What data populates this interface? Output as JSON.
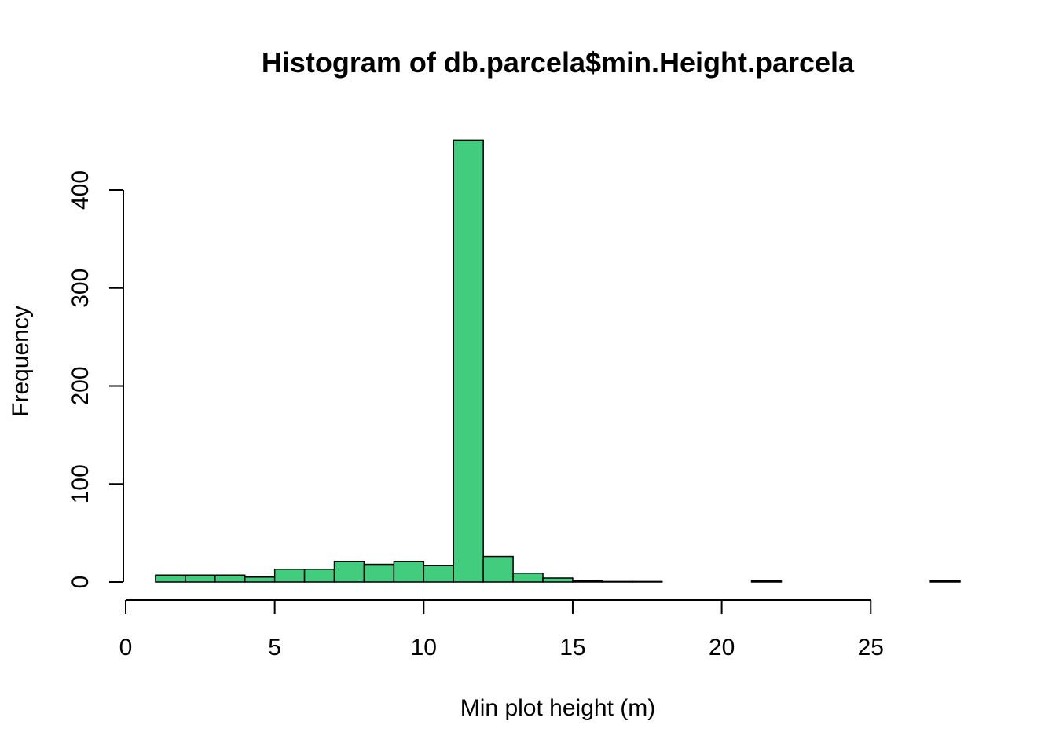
{
  "chart_data": {
    "type": "bar",
    "title": "Histogram of db.parcela$min.Height.parcela",
    "xlabel": "Min plot height (m)",
    "ylabel": "Frequency",
    "bar_color": "#42CD7E",
    "xlim": [
      0,
      28
    ],
    "ylim": [
      0,
      450
    ],
    "x_ticks": [
      0,
      5,
      10,
      15,
      20,
      25
    ],
    "y_ticks": [
      0,
      100,
      200,
      300,
      400
    ],
    "grid": false,
    "bins": [
      {
        "x0": 1,
        "x1": 2,
        "count": 7
      },
      {
        "x0": 2,
        "x1": 3,
        "count": 7
      },
      {
        "x0": 3,
        "x1": 4,
        "count": 7
      },
      {
        "x0": 4,
        "x1": 5,
        "count": 5
      },
      {
        "x0": 5,
        "x1": 6,
        "count": 13
      },
      {
        "x0": 6,
        "x1": 7,
        "count": 13
      },
      {
        "x0": 7,
        "x1": 8,
        "count": 21
      },
      {
        "x0": 8,
        "x1": 9,
        "count": 18
      },
      {
        "x0": 9,
        "x1": 10,
        "count": 21
      },
      {
        "x0": 10,
        "x1": 11,
        "count": 17
      },
      {
        "x0": 11,
        "x1": 12,
        "count": 451
      },
      {
        "x0": 12,
        "x1": 13,
        "count": 26
      },
      {
        "x0": 13,
        "x1": 14,
        "count": 9
      },
      {
        "x0": 14,
        "x1": 15,
        "count": 4
      },
      {
        "x0": 15,
        "x1": 16,
        "count": 1
      },
      {
        "x0": 16,
        "x1": 17,
        "count": 0.5
      },
      {
        "x0": 17,
        "x1": 18,
        "count": 0.5
      },
      {
        "x0": 18,
        "x1": 19,
        "count": 0
      },
      {
        "x0": 19,
        "x1": 20,
        "count": 0
      },
      {
        "x0": 20,
        "x1": 21,
        "count": 0
      },
      {
        "x0": 21,
        "x1": 22,
        "count": 1
      },
      {
        "x0": 22,
        "x1": 23,
        "count": 0
      },
      {
        "x0": 23,
        "x1": 24,
        "count": 0
      },
      {
        "x0": 24,
        "x1": 25,
        "count": 0
      },
      {
        "x0": 25,
        "x1": 26,
        "count": 0
      },
      {
        "x0": 26,
        "x1": 27,
        "count": 0
      },
      {
        "x0": 27,
        "x1": 28,
        "count": 1
      }
    ]
  }
}
